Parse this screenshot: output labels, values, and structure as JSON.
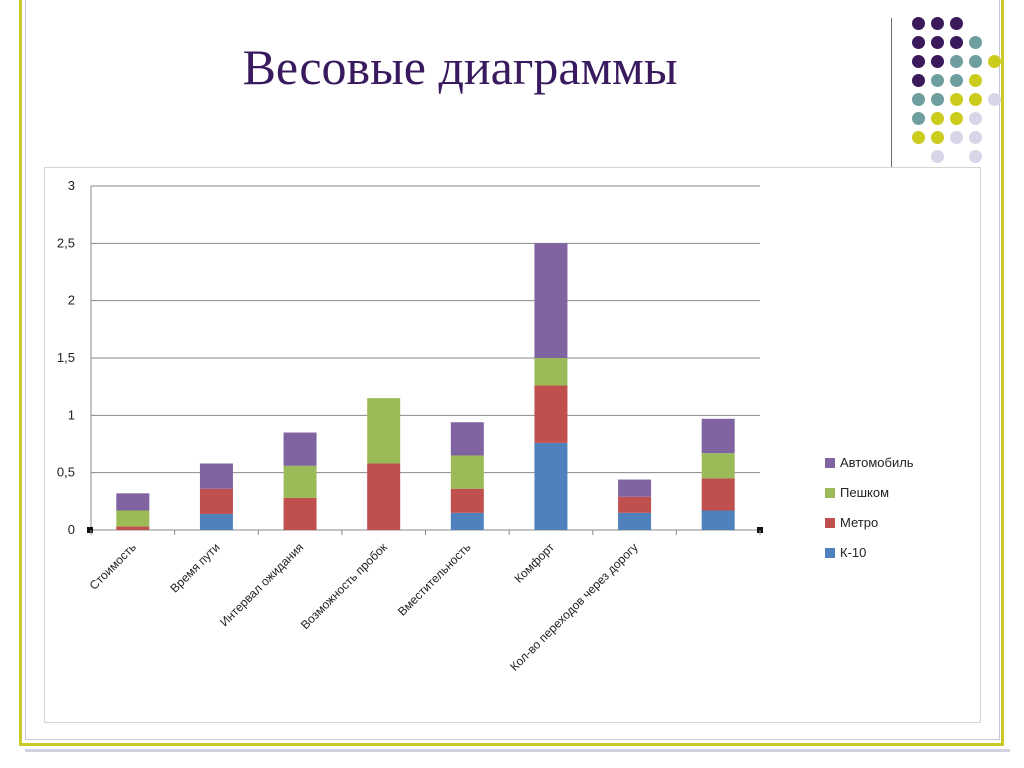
{
  "title": "Весовые диаграммы",
  "colors": {
    "title": "#3a1a5e",
    "frame_accent": "#c9c92a",
    "dot_purple": "#3b1a5c",
    "dot_teal": "#6f9e9f",
    "dot_yellow": "#cccc1c",
    "dot_lavender": "#d6d6e8"
  },
  "decor": {
    "dot_pattern": [
      [
        "purple",
        "purple",
        "purple",
        "",
        "",
        ""
      ],
      [
        "purple",
        "purple",
        "purple",
        "teal",
        "",
        ""
      ],
      [
        "purple",
        "purple",
        "teal",
        "teal",
        "yellow",
        ""
      ],
      [
        "purple",
        "teal",
        "teal",
        "yellow",
        "",
        ""
      ],
      [
        "teal",
        "teal",
        "yellow",
        "yellow",
        "lavender",
        ""
      ],
      [
        "teal",
        "yellow",
        "yellow",
        "lavender",
        "",
        ""
      ],
      [
        "yellow",
        "yellow",
        "lavender",
        "lavender",
        "",
        ""
      ],
      [
        "",
        "lavender",
        "",
        "lavender",
        "",
        ""
      ]
    ]
  },
  "chart_data": {
    "type": "bar",
    "stacked": true,
    "categories": [
      "Стоимость",
      "Время пути",
      "Интервал ожидания",
      "Возможность пробок",
      "Вместительность",
      "Комфорт",
      "Кол-во переходов через дорогу",
      ""
    ],
    "series": [
      {
        "name": "К-10",
        "color": "#4f81bd",
        "values": [
          0,
          0.14,
          0,
          0,
          0.15,
          0.76,
          0.15,
          0.17
        ]
      },
      {
        "name": "Метро",
        "color": "#c0504d",
        "values": [
          0.03,
          0.22,
          0.28,
          0.58,
          0.21,
          0.5,
          0.14,
          0.28
        ]
      },
      {
        "name": "Пешком",
        "color": "#9bbb59",
        "values": [
          0.14,
          0,
          0.28,
          0.57,
          0.29,
          0.24,
          0,
          0.22
        ]
      },
      {
        "name": "Автомобиль",
        "color": "#8064a2",
        "values": [
          0.15,
          0.22,
          0.29,
          0,
          0.29,
          1.0,
          0.15,
          0.3
        ]
      }
    ],
    "ylim": [
      0,
      3
    ],
    "yticks": [
      "0",
      "0,5",
      "1",
      "1,5",
      "2",
      "2,5",
      "3"
    ],
    "grid": true,
    "legend_position": "right",
    "xlabel": "",
    "ylabel": ""
  }
}
